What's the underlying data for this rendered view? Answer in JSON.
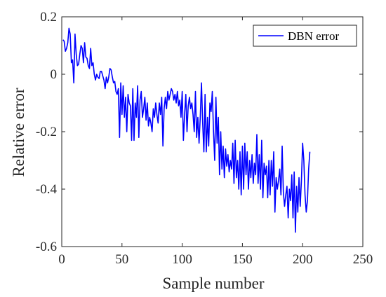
{
  "chart_data": {
    "type": "line",
    "title": "",
    "xlabel": "Sample number",
    "ylabel": "Relative error",
    "xlim": [
      0,
      250
    ],
    "ylim": [
      -0.6,
      0.2
    ],
    "xticks": [
      0,
      50,
      100,
      150,
      200,
      250
    ],
    "yticks": [
      -0.6,
      -0.4,
      -0.2,
      0,
      0.2
    ],
    "xtick_labels": [
      "0",
      "50",
      "100",
      "150",
      "200",
      "250"
    ],
    "ytick_labels": [
      "-0.6",
      "-0.4",
      "-0.2",
      "0",
      "0.2"
    ],
    "grid": false,
    "legend": {
      "position": "top-right",
      "entries": [
        "DBN error"
      ]
    },
    "series": [
      {
        "name": "DBN error",
        "color": "#0000ff",
        "y": [
          0.12,
          0.115,
          0.08,
          0.09,
          0.11,
          0.16,
          0.14,
          0.04,
          0.05,
          -0.03,
          0.14,
          0.07,
          0.03,
          0.035,
          0.07,
          0.1,
          0.09,
          0.04,
          0.11,
          0.06,
          0.055,
          0.03,
          0.02,
          0.09,
          0.03,
          0.04,
          0.0,
          -0.02,
          0.0,
          -0.01,
          -0.015,
          0.01,
          0.01,
          -0.005,
          -0.02,
          -0.05,
          -0.01,
          -0.03,
          -0.01,
          0.02,
          0.015,
          -0.01,
          -0.03,
          -0.025,
          -0.06,
          -0.07,
          -0.05,
          -0.22,
          -0.03,
          -0.14,
          -0.04,
          -0.15,
          -0.08,
          -0.2,
          -0.07,
          -0.1,
          -0.11,
          -0.23,
          -0.05,
          -0.23,
          -0.1,
          -0.15,
          -0.04,
          -0.22,
          -0.09,
          -0.06,
          -0.15,
          -0.12,
          -0.08,
          -0.16,
          -0.1,
          -0.18,
          -0.15,
          -0.17,
          -0.2,
          -0.12,
          -0.15,
          -0.1,
          -0.14,
          -0.17,
          -0.1,
          -0.14,
          -0.08,
          -0.25,
          -0.12,
          -0.08,
          -0.12,
          -0.06,
          -0.09,
          -0.07,
          -0.05,
          -0.06,
          -0.09,
          -0.07,
          -0.1,
          -0.06,
          -0.11,
          -0.09,
          -0.15,
          -0.06,
          -0.23,
          -0.14,
          -0.07,
          -0.2,
          -0.11,
          -0.08,
          -0.12,
          -0.1,
          -0.14,
          -0.2,
          -0.06,
          -0.22,
          -0.15,
          -0.24,
          -0.15,
          -0.03,
          -0.17,
          -0.27,
          -0.07,
          -0.27,
          -0.15,
          -0.25,
          -0.1,
          -0.13,
          -0.06,
          -0.2,
          -0.3,
          -0.08,
          -0.24,
          -0.15,
          -0.35,
          -0.2,
          -0.33,
          -0.25,
          -0.36,
          -0.26,
          -0.32,
          -0.28,
          -0.34,
          -0.3,
          -0.33,
          -0.24,
          -0.38,
          -0.23,
          -0.36,
          -0.3,
          -0.4,
          -0.27,
          -0.42,
          -0.25,
          -0.4,
          -0.24,
          -0.35,
          -0.27,
          -0.4,
          -0.3,
          -0.36,
          -0.28,
          -0.38,
          -0.31,
          -0.35,
          -0.21,
          -0.38,
          -0.28,
          -0.4,
          -0.23,
          -0.43,
          -0.31,
          -0.35,
          -0.32,
          -0.43,
          -0.3,
          -0.42,
          -0.3,
          -0.39,
          -0.27,
          -0.48,
          -0.36,
          -0.4,
          -0.37,
          -0.33,
          -0.42,
          -0.25,
          -0.41,
          -0.46,
          -0.42,
          -0.39,
          -0.5,
          -0.4,
          -0.44,
          -0.35,
          -0.5,
          -0.34,
          -0.55,
          -0.39,
          -0.48,
          -0.36,
          -0.46,
          -0.37,
          -0.24,
          -0.3,
          -0.42,
          -0.48,
          -0.44,
          -0.33,
          -0.27
        ]
      }
    ]
  }
}
